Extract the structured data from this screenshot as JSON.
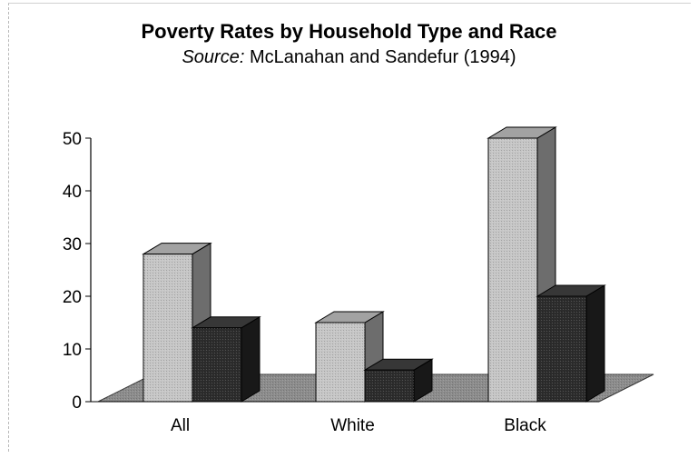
{
  "chart_data": {
    "type": "bar",
    "title": "Poverty Rates by Household Type and Race",
    "subtitle_prefix": "Source:",
    "subtitle_rest": "McLanahan and Sandefur (1994)",
    "categories": [
      "All",
      "White",
      "Black"
    ],
    "series": [
      {
        "values": [
          28,
          15,
          50
        ]
      },
      {
        "values": [
          14,
          6,
          20
        ]
      }
    ],
    "ylim": [
      0,
      50
    ],
    "yticks": [
      0,
      10,
      20,
      30,
      40,
      50
    ],
    "xlabel": "",
    "ylabel": "",
    "grid": false,
    "style": "3d-clustered",
    "colors": {
      "front_light": "#c6c6c6",
      "front_dark": "#2c2c2c",
      "floor": "#8c8c8c"
    }
  }
}
